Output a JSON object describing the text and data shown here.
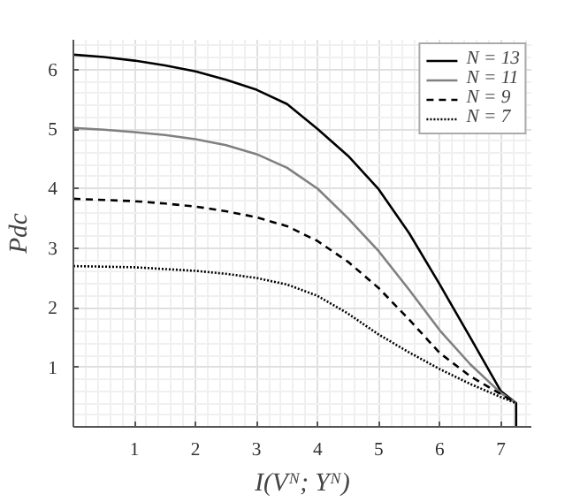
{
  "chart_data": {
    "type": "line",
    "xlabel": "I(Vᴺ; Yᴺ)",
    "ylabel": "Pdc",
    "xlim": [
      0,
      7.5
    ],
    "ylim": [
      0,
      6.5
    ],
    "xticks": [
      1,
      2,
      3,
      4,
      5,
      6,
      7
    ],
    "yticks": [
      1,
      2,
      3,
      4,
      5,
      6
    ],
    "grid": true,
    "legend": "top right",
    "marker": "none",
    "series": [
      {
        "name": "N = 13",
        "color": "#000000",
        "line_style": "solid",
        "x": [
          0,
          0.5,
          1,
          1.5,
          2,
          2.5,
          3,
          3.5,
          4,
          4.5,
          5,
          5.5,
          6,
          6.5,
          7,
          7.25,
          7.25
        ],
        "values": [
          6.25,
          6.21,
          6.15,
          6.07,
          5.97,
          5.83,
          5.66,
          5.42,
          5.0,
          4.55,
          3.99,
          3.25,
          2.39,
          1.5,
          0.6,
          0.4,
          0
        ]
      },
      {
        "name": "N = 11",
        "color": "#808080",
        "line_style": "solid",
        "x": [
          0,
          0.5,
          1,
          1.5,
          2,
          2.5,
          3,
          3.5,
          4,
          4.5,
          5,
          5.5,
          6,
          6.5,
          7,
          7.25
        ],
        "values": [
          5.02,
          4.99,
          4.95,
          4.9,
          4.83,
          4.73,
          4.58,
          4.35,
          4.0,
          3.5,
          2.95,
          2.3,
          1.62,
          1.05,
          0.57,
          0.4
        ]
      },
      {
        "name": "N = 9",
        "color": "#000000",
        "line_style": "dashed",
        "x": [
          0,
          0.5,
          1,
          1.5,
          2,
          2.5,
          3,
          3.5,
          4,
          4.5,
          5,
          5.5,
          6,
          6.5,
          7,
          7.25
        ],
        "values": [
          3.83,
          3.81,
          3.79,
          3.75,
          3.7,
          3.62,
          3.52,
          3.37,
          3.12,
          2.77,
          2.33,
          1.8,
          1.24,
          0.85,
          0.55,
          0.4
        ]
      },
      {
        "name": "N = 7",
        "color": "#000000",
        "line_style": "dotted",
        "x": [
          0,
          0.5,
          1,
          1.5,
          2,
          2.5,
          3,
          3.5,
          4,
          4.5,
          5,
          5.5,
          6,
          6.5,
          7,
          7.25
        ],
        "values": [
          2.7,
          2.69,
          2.68,
          2.65,
          2.62,
          2.57,
          2.5,
          2.39,
          2.2,
          1.9,
          1.55,
          1.25,
          0.97,
          0.72,
          0.5,
          0.4
        ]
      }
    ]
  }
}
